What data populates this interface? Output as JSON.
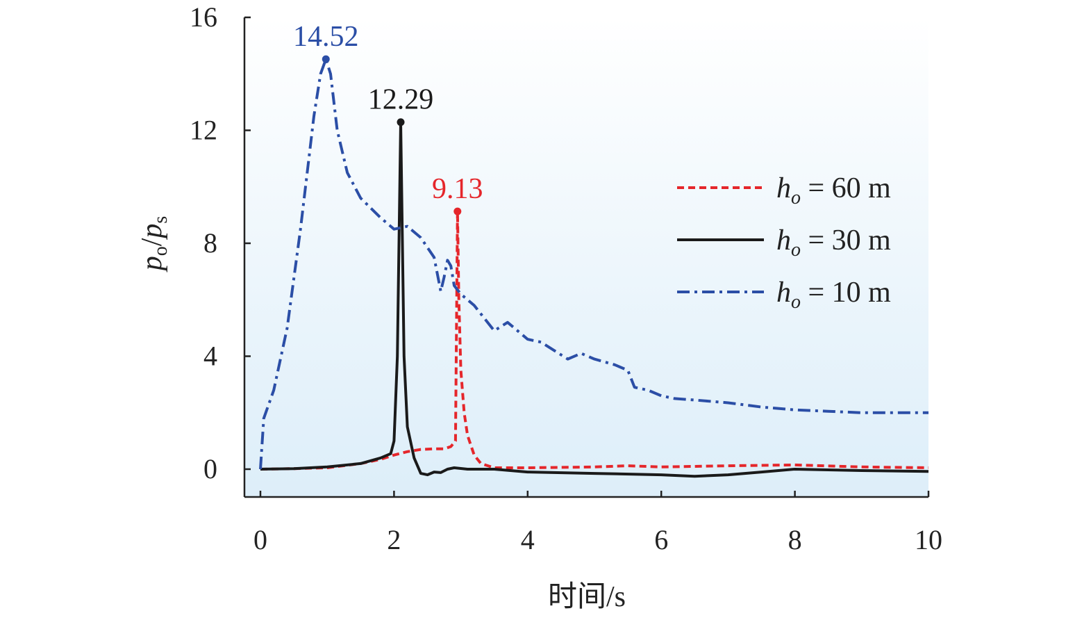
{
  "chart_data": {
    "type": "line",
    "xlabel": "时间/s",
    "ylabel": {
      "p1": "p",
      "sub1": "o",
      "slash": "/",
      "p2": "p",
      "sub2": "s"
    },
    "xlim": [
      0,
      10
    ],
    "ylim": [
      -1,
      16
    ],
    "xticks": [
      0,
      2,
      4,
      6,
      8,
      10
    ],
    "yticks": [
      0,
      4,
      8,
      12,
      16
    ],
    "xtick_labels": [
      "0",
      "2",
      "4",
      "6",
      "8",
      "10"
    ],
    "ytick_labels": [
      "0",
      "4",
      "8",
      "12",
      "16"
    ],
    "grid": false,
    "legend_placement": "top-right",
    "legend_var": "h",
    "legend_sub": "o",
    "series": [
      {
        "name": "= 60 m",
        "color": "#e5262b",
        "dash": "dash",
        "peak": {
          "x": 2.95,
          "y": 9.13,
          "label": "9.13"
        },
        "x": [
          0,
          0.5,
          1.0,
          1.5,
          1.8,
          2.0,
          2.2,
          2.4,
          2.6,
          2.75,
          2.85,
          2.92,
          2.95,
          2.97,
          3.0,
          3.05,
          3.1,
          3.2,
          3.3,
          3.5,
          4.0,
          5.0,
          5.5,
          6.0,
          7.0,
          8.0,
          9.0,
          10.0
        ],
        "y": [
          0.0,
          0.02,
          0.05,
          0.2,
          0.35,
          0.5,
          0.62,
          0.7,
          0.72,
          0.72,
          0.8,
          1.0,
          9.13,
          6.0,
          3.5,
          2.0,
          1.2,
          0.5,
          0.2,
          0.05,
          0.05,
          0.08,
          0.12,
          0.08,
          0.12,
          0.15,
          0.08,
          0.05
        ]
      },
      {
        "name": "= 30 m",
        "color": "#1a1a1a",
        "dash": "solid",
        "peak": {
          "x": 2.1,
          "y": 12.29,
          "label": "12.29"
        },
        "x": [
          0,
          0.5,
          1.0,
          1.5,
          1.8,
          1.95,
          2.0,
          2.05,
          2.08,
          2.1,
          2.12,
          2.15,
          2.2,
          2.3,
          2.4,
          2.5,
          2.6,
          2.7,
          2.8,
          2.9,
          3.1,
          3.5,
          4.0,
          5.0,
          6.0,
          6.5,
          7.0,
          7.5,
          8.0,
          9.0,
          10.0
        ],
        "y": [
          0.0,
          0.02,
          0.08,
          0.2,
          0.4,
          0.55,
          1.0,
          4.0,
          9.0,
          12.29,
          9.0,
          4.0,
          1.5,
          0.4,
          -0.15,
          -0.2,
          -0.1,
          -0.12,
          0.0,
          0.05,
          0.0,
          0.0,
          -0.1,
          -0.15,
          -0.2,
          -0.25,
          -0.2,
          -0.1,
          0.0,
          -0.05,
          -0.08
        ]
      },
      {
        "name": "= 10 m",
        "color": "#2b4ea6",
        "dash": "dashdot",
        "peak": {
          "x": 0.98,
          "y": 14.52,
          "label": "14.52"
        },
        "x": [
          0,
          0.05,
          0.2,
          0.4,
          0.6,
          0.8,
          0.9,
          0.98,
          1.05,
          1.15,
          1.3,
          1.5,
          1.8,
          2.0,
          2.2,
          2.4,
          2.6,
          2.7,
          2.75,
          2.8,
          2.85,
          2.9,
          3.0,
          3.2,
          3.5,
          3.7,
          3.8,
          4.0,
          4.2,
          4.4,
          4.6,
          4.8,
          5.0,
          5.3,
          5.5,
          5.6,
          5.8,
          6.0,
          6.2,
          6.5,
          7.0,
          7.5,
          8.0,
          8.5,
          9.0,
          9.5,
          10.0
        ],
        "y": [
          0.0,
          1.8,
          2.8,
          5.0,
          8.5,
          12.5,
          14.0,
          14.52,
          14.0,
          12.0,
          10.5,
          9.6,
          8.9,
          8.5,
          8.6,
          8.2,
          7.5,
          6.3,
          6.8,
          7.4,
          7.2,
          6.5,
          6.2,
          5.8,
          4.9,
          5.2,
          5.0,
          4.6,
          4.5,
          4.2,
          3.9,
          4.1,
          3.9,
          3.7,
          3.5,
          2.9,
          2.8,
          2.6,
          2.5,
          2.45,
          2.35,
          2.2,
          2.1,
          2.05,
          2.0,
          2.0,
          2.0
        ]
      }
    ]
  }
}
